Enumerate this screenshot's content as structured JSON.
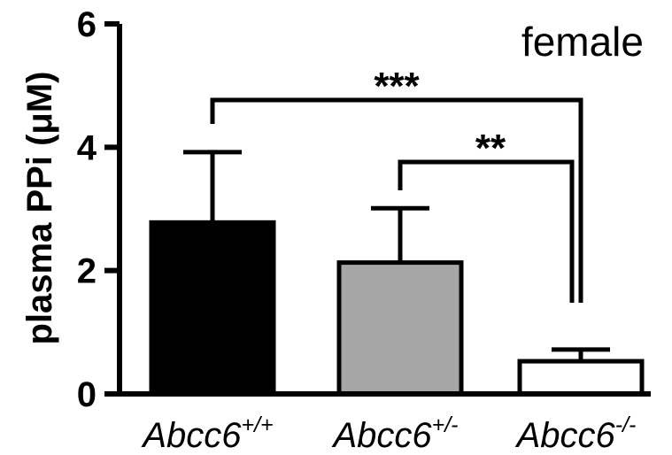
{
  "chart_data": {
    "type": "bar",
    "ylabel": "plasma PPi (μM)",
    "annotation": "female",
    "ylim": [
      0,
      6
    ],
    "yticks": [
      "0",
      "2",
      "4",
      "6"
    ],
    "categories": [
      {
        "base": "Abcc6",
        "sup": "+/+"
      },
      {
        "base": "Abcc6",
        "sup": "+/-"
      },
      {
        "base": "Abcc6",
        "sup": "-/-"
      }
    ],
    "values": [
      2.78,
      2.13,
      0.53
    ],
    "errors": [
      1.14,
      0.88,
      0.19
    ],
    "bar_colors": [
      "#000000",
      "#a6a6a6",
      "#ffffff"
    ],
    "significance": [
      {
        "from": 0,
        "to": 2,
        "label": "***"
      },
      {
        "from": 1,
        "to": 2,
        "label": "**"
      }
    ]
  }
}
